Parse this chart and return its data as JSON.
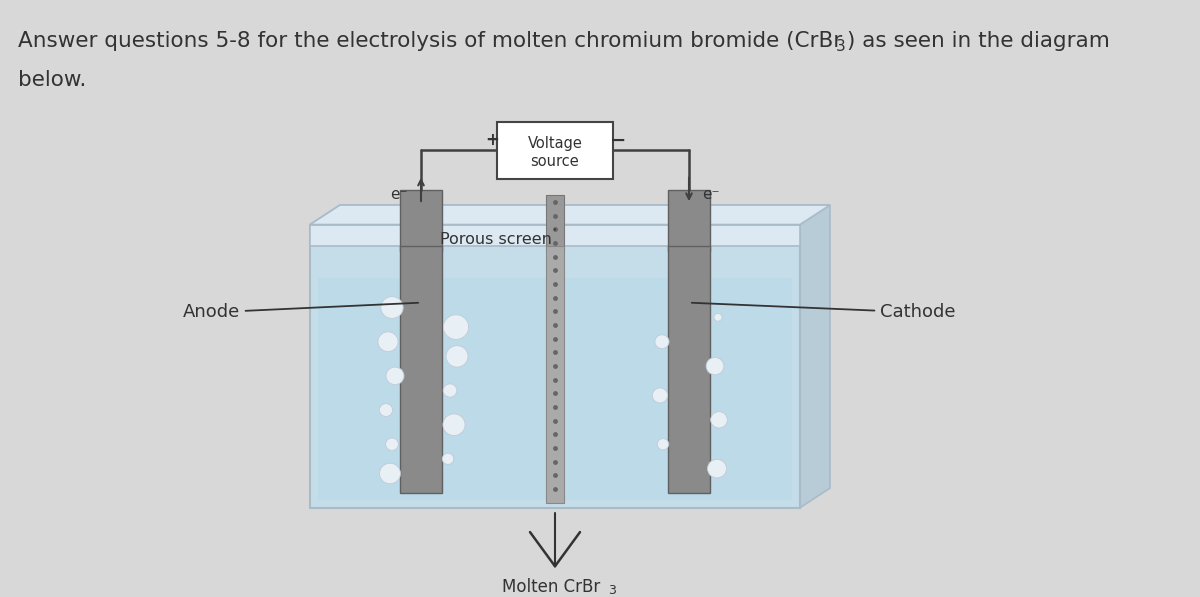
{
  "bg_color": "#d8d8d8",
  "tank_front_color": "#c5dde8",
  "tank_rim_color": "#dce8f0",
  "tank_side_color": "#b0c8d8",
  "tank_back_color": "#ccdbe8",
  "electrode_color": "#888888",
  "electrode_edge": "#666666",
  "screen_dot_color": "#888888",
  "screen_bg": "#aaaaaa",
  "bubble_color": "#e8eff5",
  "bubble_edge": "#c0ccd5",
  "wire_color": "#404040",
  "text_color": "#333333",
  "volt_box_bg": "#ffffff",
  "volt_box_border": "#444444",
  "label_voltage": "Voltage\nsource",
  "label_plus": "+",
  "label_minus": "−",
  "label_e_left": "e⁻",
  "label_e_right": "e⁻",
  "label_anode": "Anode",
  "label_cathode": "Cathode",
  "label_porous": "Porous screen",
  "label_molten": "Molten CrBr",
  "label_molten_sub": "3"
}
